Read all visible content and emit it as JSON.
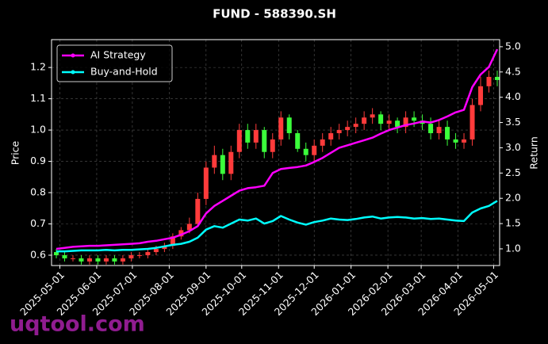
{
  "chart_data": {
    "type": "candlestick",
    "title": "FUND - 588390.SH",
    "y_label": "Price",
    "y2_label": "Return",
    "watermark": "uqtool.com",
    "x": [
      "2025-04-28",
      "2025-05-05",
      "2025-05-12",
      "2025-05-19",
      "2025-05-26",
      "2025-06-02",
      "2025-06-09",
      "2025-06-16",
      "2025-06-23",
      "2025-06-30",
      "2025-07-07",
      "2025-07-14",
      "2025-07-21",
      "2025-07-28",
      "2025-08-04",
      "2025-08-11",
      "2025-08-18",
      "2025-08-25",
      "2025-09-01",
      "2025-09-08",
      "2025-09-15",
      "2025-09-22",
      "2025-09-29",
      "2025-10-06",
      "2025-10-13",
      "2025-10-20",
      "2025-10-27",
      "2025-11-03",
      "2025-11-10",
      "2025-11-17",
      "2025-11-24",
      "2025-12-01",
      "2025-12-08",
      "2025-12-15",
      "2025-12-22",
      "2025-12-29",
      "2026-01-05",
      "2026-01-12",
      "2026-01-19",
      "2026-01-26",
      "2026-02-02",
      "2026-02-09",
      "2026-02-16",
      "2026-02-23",
      "2026-03-02",
      "2026-03-09",
      "2026-03-16",
      "2026-03-23",
      "2026-03-30",
      "2026-04-06",
      "2026-04-13",
      "2026-04-20",
      "2026-04-27",
      "2026-05-04"
    ],
    "candles": {
      "up_color": "#ff3b3b",
      "down_color": "#3bff3b",
      "open": [
        0.61,
        0.6,
        0.59,
        0.59,
        0.58,
        0.59,
        0.58,
        0.59,
        0.58,
        0.59,
        0.6,
        0.6,
        0.61,
        0.62,
        0.63,
        0.66,
        0.68,
        0.7,
        0.78,
        0.88,
        0.92,
        0.86,
        0.93,
        1.0,
        0.96,
        1.0,
        0.93,
        0.97,
        1.04,
        0.99,
        0.94,
        0.92,
        0.95,
        0.97,
        0.99,
        1.0,
        1.01,
        1.02,
        1.04,
        1.05,
        1.02,
        1.03,
        1.01,
        1.04,
        1.03,
        1.02,
        0.99,
        1.01,
        0.97,
        0.96,
        0.97,
        1.08,
        1.14,
        1.17
      ],
      "high": [
        0.62,
        0.61,
        0.6,
        0.6,
        0.6,
        0.6,
        0.6,
        0.6,
        0.6,
        0.61,
        0.61,
        0.62,
        0.63,
        0.64,
        0.67,
        0.69,
        0.72,
        0.8,
        0.9,
        0.95,
        0.94,
        0.95,
        1.02,
        1.02,
        1.02,
        1.01,
        0.99,
        1.06,
        1.05,
        1.0,
        0.96,
        0.97,
        0.99,
        1.01,
        1.02,
        1.03,
        1.04,
        1.06,
        1.07,
        1.06,
        1.05,
        1.04,
        1.06,
        1.06,
        1.05,
        1.04,
        1.03,
        1.03,
        0.99,
        0.99,
        1.1,
        1.17,
        1.19,
        1.19
      ],
      "low": [
        0.59,
        0.58,
        0.58,
        0.57,
        0.57,
        0.57,
        0.57,
        0.57,
        0.57,
        0.58,
        0.59,
        0.59,
        0.6,
        0.61,
        0.62,
        0.65,
        0.67,
        0.69,
        0.76,
        0.86,
        0.84,
        0.84,
        0.91,
        0.94,
        0.94,
        0.91,
        0.91,
        0.95,
        0.97,
        0.93,
        0.9,
        0.9,
        0.93,
        0.95,
        0.97,
        0.98,
        0.99,
        1.0,
        1.02,
        1.0,
        1.0,
        0.99,
        0.99,
        1.01,
        1.0,
        0.97,
        0.97,
        0.95,
        0.94,
        0.94,
        0.95,
        1.06,
        1.12,
        1.14
      ],
      "close": [
        0.6,
        0.59,
        0.59,
        0.58,
        0.59,
        0.58,
        0.59,
        0.58,
        0.59,
        0.6,
        0.6,
        0.61,
        0.62,
        0.63,
        0.66,
        0.68,
        0.7,
        0.78,
        0.88,
        0.92,
        0.86,
        0.93,
        1.0,
        0.96,
        1.0,
        0.93,
        0.97,
        1.04,
        0.99,
        0.94,
        0.92,
        0.95,
        0.97,
        0.99,
        1.0,
        1.01,
        1.02,
        1.04,
        1.05,
        1.02,
        1.03,
        1.01,
        1.04,
        1.03,
        1.02,
        0.99,
        1.01,
        0.97,
        0.96,
        0.97,
        1.08,
        1.14,
        1.17,
        1.16
      ]
    },
    "series": [
      {
        "name": "AI Strategy",
        "color": "#ff00ff",
        "axis": "y2",
        "values": [
          1.0,
          1.02,
          1.04,
          1.05,
          1.06,
          1.06,
          1.07,
          1.08,
          1.09,
          1.1,
          1.11,
          1.14,
          1.16,
          1.19,
          1.22,
          1.28,
          1.35,
          1.45,
          1.7,
          1.85,
          1.95,
          2.05,
          2.15,
          2.2,
          2.22,
          2.25,
          2.5,
          2.58,
          2.6,
          2.62,
          2.65,
          2.72,
          2.8,
          2.9,
          3.0,
          3.05,
          3.1,
          3.15,
          3.2,
          3.28,
          3.35,
          3.4,
          3.45,
          3.48,
          3.52,
          3.5,
          3.55,
          3.62,
          3.7,
          3.75,
          4.2,
          4.45,
          4.6,
          4.95
        ]
      },
      {
        "name": "Buy-and-Hold",
        "color": "#00ffff",
        "axis": "y2",
        "values": [
          0.95,
          0.95,
          0.96,
          0.97,
          0.97,
          0.97,
          0.98,
          0.97,
          0.98,
          0.98,
          0.99,
          1.0,
          1.02,
          1.05,
          1.08,
          1.1,
          1.14,
          1.22,
          1.38,
          1.45,
          1.42,
          1.5,
          1.58,
          1.56,
          1.6,
          1.5,
          1.55,
          1.65,
          1.58,
          1.52,
          1.48,
          1.53,
          1.56,
          1.6,
          1.58,
          1.57,
          1.59,
          1.62,
          1.64,
          1.6,
          1.62,
          1.63,
          1.62,
          1.6,
          1.61,
          1.59,
          1.6,
          1.58,
          1.56,
          1.55,
          1.72,
          1.8,
          1.85,
          1.95
        ]
      }
    ],
    "xlim": [
      "2025-04-24",
      "2026-05-06"
    ],
    "xticks": [
      "2025-05-01",
      "2025-06-01",
      "2025-07-01",
      "2025-08-01",
      "2025-09-01",
      "2025-10-01",
      "2025-11-01",
      "2025-12-01",
      "2026-01-01",
      "2026-02-01",
      "2026-03-01",
      "2026-04-01",
      "2026-05-01"
    ],
    "ylim": [
      0.567,
      1.289
    ],
    "yticks": [
      0.6,
      0.7,
      0.8,
      0.9,
      {
        "value": 1.0,
        "label": "1.0"
      },
      1.1,
      1.2
    ],
    "y2lim": [
      0.67,
      5.14
    ],
    "y2ticks": [
      {
        "value": 1.0,
        "label": "1.0"
      },
      1.5,
      {
        "value": 2.0,
        "label": "2.0"
      },
      2.5,
      {
        "value": 3.0,
        "label": "3.0"
      },
      3.5,
      {
        "value": 4.0,
        "label": "4.0"
      },
      4.5,
      {
        "value": 5.0,
        "label": "5.0"
      }
    ],
    "grid": true,
    "legend": "upper left"
  }
}
